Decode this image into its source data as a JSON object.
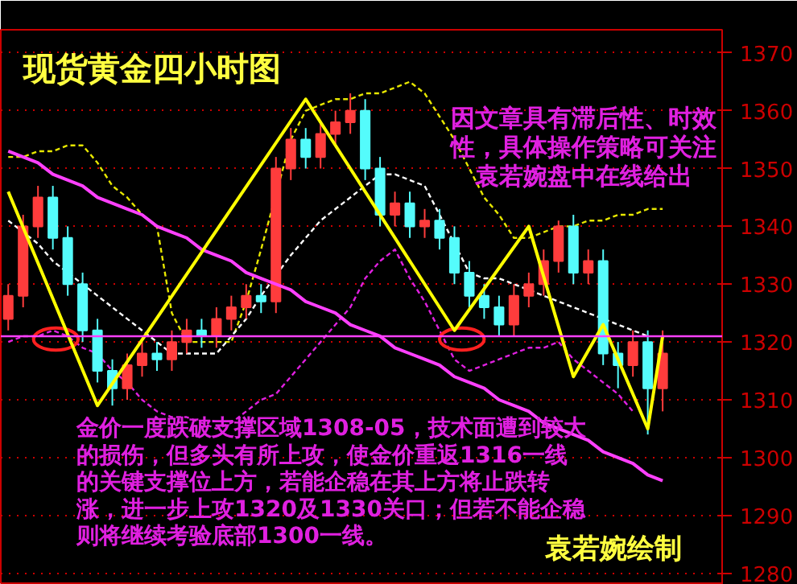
{
  "chart_data": {
    "type": "candlestick",
    "title": "现货黄金四小时图",
    "categories": [
      null,
      null,
      null,
      null,
      null,
      null,
      null,
      null,
      null,
      null,
      null,
      null,
      null,
      null,
      null,
      null,
      null,
      null,
      null,
      null,
      null,
      null,
      null,
      null,
      null,
      null,
      null,
      null,
      null,
      null,
      null,
      null,
      null,
      null,
      null,
      null,
      null,
      null,
      null,
      null,
      null,
      null,
      null,
      null,
      null
    ],
    "ohlc": [
      [
        1324,
        1330,
        1322,
        1328
      ],
      [
        1328,
        1342,
        1326,
        1340
      ],
      [
        1340,
        1347,
        1338,
        1345
      ],
      [
        1345,
        1347,
        1336,
        1338
      ],
      [
        1338,
        1340,
        1328,
        1330
      ],
      [
        1330,
        1332,
        1320,
        1322
      ],
      [
        1322,
        1324,
        1313,
        1315
      ],
      [
        1315,
        1317,
        1309,
        1312
      ],
      [
        1312,
        1318,
        1310,
        1316
      ],
      [
        1316,
        1320,
        1314,
        1318
      ],
      [
        1318,
        1320,
        1315,
        1317
      ],
      [
        1317,
        1322,
        1315,
        1320
      ],
      [
        1320,
        1324,
        1318,
        1322
      ],
      [
        1322,
        1324,
        1319,
        1321
      ],
      [
        1321,
        1326,
        1319,
        1324
      ],
      [
        1324,
        1328,
        1322,
        1326
      ],
      [
        1326,
        1330,
        1324,
        1328
      ],
      [
        1328,
        1330,
        1325,
        1327
      ],
      [
        1327,
        1352,
        1325,
        1350
      ],
      [
        1350,
        1357,
        1348,
        1355
      ],
      [
        1355,
        1357,
        1350,
        1352
      ],
      [
        1352,
        1358,
        1350,
        1356
      ],
      [
        1356,
        1360,
        1354,
        1358
      ],
      [
        1358,
        1363,
        1356,
        1360
      ],
      [
        1360,
        1362,
        1348,
        1350
      ],
      [
        1350,
        1352,
        1340,
        1342
      ],
      [
        1342,
        1346,
        1340,
        1344
      ],
      [
        1344,
        1346,
        1338,
        1340
      ],
      [
        1340,
        1343,
        1338,
        1341
      ],
      [
        1341,
        1343,
        1336,
        1338
      ],
      [
        1338,
        1340,
        1330,
        1332
      ],
      [
        1332,
        1334,
        1326,
        1328
      ],
      [
        1328,
        1330,
        1324,
        1326
      ],
      [
        1326,
        1328,
        1321,
        1323
      ],
      [
        1323,
        1330,
        1321,
        1328
      ],
      [
        1328,
        1332,
        1326,
        1330
      ],
      [
        1330,
        1336,
        1328,
        1334
      ],
      [
        1334,
        1341,
        1332,
        1340
      ],
      [
        1340,
        1342,
        1330,
        1332
      ],
      [
        1332,
        1336,
        1330,
        1334
      ],
      [
        1334,
        1336,
        1316,
        1318
      ],
      [
        1318,
        1320,
        1312,
        1316
      ],
      [
        1316,
        1322,
        1314,
        1320
      ],
      [
        1320,
        1322,
        1304,
        1312
      ],
      [
        1312,
        1322,
        1308,
        1318
      ]
    ],
    "colors": [
      "#ff3c3c",
      "#ff3c3c",
      "#ff3c3c",
      "#54fcfc",
      "#54fcfc",
      "#54fcfc",
      "#54fcfc",
      "#54fcfc",
      "#ff3c3c",
      "#ff3c3c",
      "#54fcfc",
      "#ff3c3c",
      "#ff3c3c",
      "#54fcfc",
      "#ff3c3c",
      "#ff3c3c",
      "#ff3c3c",
      "#54fcfc",
      "#ff3c3c",
      "#ff3c3c",
      "#54fcfc",
      "#ff3c3c",
      "#ff3c3c",
      "#ff3c3c",
      "#54fcfc",
      "#54fcfc",
      "#ff3c3c",
      "#54fcfc",
      "#ff3c3c",
      "#54fcfc",
      "#54fcfc",
      "#54fcfc",
      "#54fcfc",
      "#54fcfc",
      "#ff3c3c",
      "#ff3c3c",
      "#ff3c3c",
      "#ff3c3c",
      "#54fcfc",
      "#ff3c3c",
      "#54fcfc",
      "#54fcfc",
      "#ff3c3c",
      "#54fcfc",
      "#ff3c3c"
    ],
    "series": [
      {
        "type": "line",
        "color": "#e8e800",
        "line_style": "dashed",
        "values": [
          1352,
          1352,
          1353,
          1353,
          1354,
          1354,
          1351,
          1347,
          1345,
          1342,
          1340,
          1325,
          1320,
          1320,
          1320,
          1320,
          1327,
          1336,
          null,
          1355,
          1360,
          1361,
          1362,
          1362,
          1363,
          1363,
          1364,
          1365,
          1363,
          1359,
          1355,
          1350,
          1345,
          1342,
          1338,
          1338,
          1339,
          1340,
          1340,
          1341,
          1341,
          1342,
          1342,
          1343,
          1343
        ]
      },
      {
        "type": "line",
        "color": "#ffffff",
        "line_style": "dashed",
        "values": [
          1341,
          1339,
          1337,
          1334,
          null,
          1330,
          1328,
          1326,
          1324,
          1322,
          1320,
          1318,
          1318,
          1318,
          1318,
          1321,
          1324,
          1328,
          null,
          1335,
          1338,
          1341,
          1343,
          1345,
          1347,
          1349,
          1349,
          1348,
          1347,
          1342,
          null,
          1332,
          1331,
          1331,
          1330,
          1329,
          1328,
          1327,
          1326,
          1325,
          null,
          1323,
          1322,
          1321,
          null
        ]
      },
      {
        "type": "line",
        "color": "#e020e0",
        "line_style": "dashed",
        "values": [
          1320,
          1321,
          1321,
          1322,
          1321,
          1319,
          1318,
          1315,
          1313,
          1310,
          1308,
          1307,
          1307,
          1306,
          1305,
          1306,
          1308,
          1310,
          1311,
          1314,
          1317,
          1320,
          1323,
          1326,
          1331,
          1334,
          1336,
          1331,
          1327,
          1322,
          1317,
          1315,
          1316,
          1317,
          1318,
          1319,
          1319,
          1320,
          1317,
          1315,
          1313,
          1311,
          1308,
          null,
          null
        ]
      },
      {
        "type": "line",
        "color": "#ff40ff",
        "line_style": "solid",
        "values": [
          1353,
          1352,
          1351,
          1349,
          1348,
          1347,
          1345,
          1344,
          1343,
          1342,
          1340,
          1339,
          1338,
          1336,
          1335,
          1334,
          1332,
          1331,
          1330,
          1329,
          1327,
          1326,
          1325,
          1323,
          1322,
          1321,
          1319,
          1318,
          1317,
          1316,
          1314,
          1313,
          1312,
          1310,
          1309,
          1308,
          1306,
          1305,
          1304,
          1303,
          1301,
          1300,
          1299,
          1297,
          1296
        ]
      },
      {
        "type": "line",
        "color": "#ffff00",
        "line_style": "solid",
        "values": [
          1346,
          null,
          null,
          null,
          null,
          null,
          1309,
          null,
          null,
          null,
          null,
          null,
          null,
          null,
          null,
          null,
          null,
          null,
          null,
          null,
          1362,
          null,
          null,
          null,
          null,
          null,
          null,
          null,
          null,
          null,
          1322,
          null,
          null,
          null,
          null,
          1340,
          null,
          null,
          1314,
          null,
          1323,
          null,
          null,
          1305,
          1321
        ]
      }
    ],
    "ref_lines": [
      {
        "axis": "y",
        "value": 1321,
        "color": "#ff40ff"
      }
    ],
    "ylim": [
      1278,
      1374
    ],
    "yticks": [
      1280,
      1290,
      1300,
      1310,
      1320,
      1330,
      1340,
      1350,
      1360,
      1370
    ],
    "grid": "y",
    "tick_labels": "y",
    "annotations": [
      "因文章具有滞后性、时效性，具体操作策略可关注袁若婉盘中在线给出",
      "金价一度跌破支撑区域1308-05，技术面遭到较大的损伤，但多头有所上攻，使金价重返1316一线的关键支撑位上方，若能企稳在其上方将止跌转涨，进一步上攻1320及1330关口；但若不能企稳则将继续考验底部1300一线。",
      "袁若婉绘制"
    ]
  }
}
